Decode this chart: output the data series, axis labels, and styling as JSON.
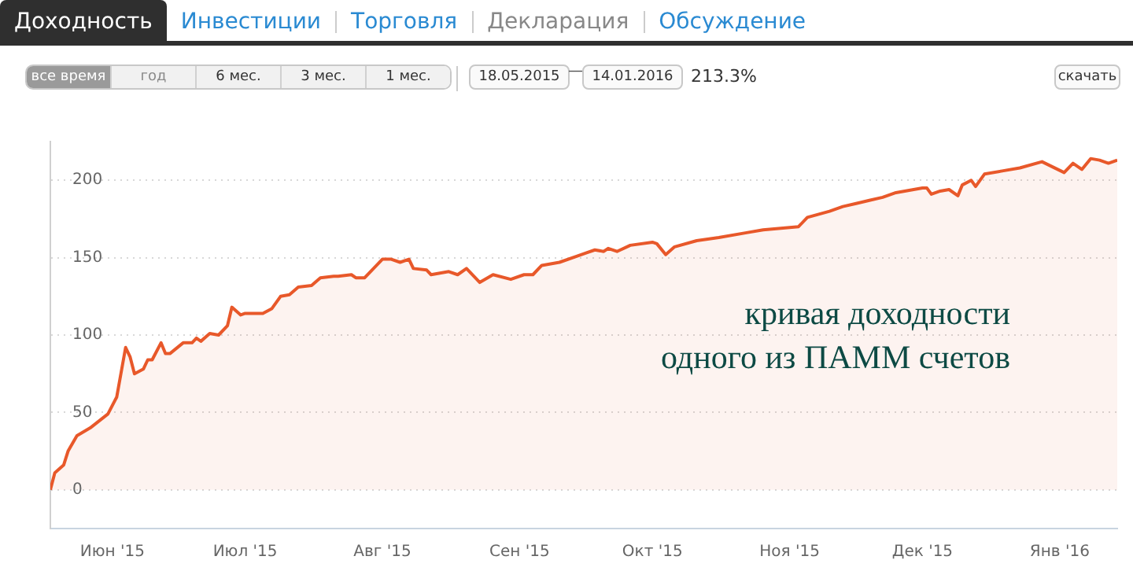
{
  "chart_data": {
    "type": "area",
    "x": [
      "2015-05-18",
      "2015-05-19",
      "2015-05-21",
      "2015-05-22",
      "2015-05-24",
      "2015-05-27",
      "2015-05-31",
      "2015-06-02",
      "2015-06-04",
      "2015-06-05",
      "2015-06-06",
      "2015-06-08",
      "2015-06-09",
      "2015-06-10",
      "2015-06-12",
      "2015-06-13",
      "2015-06-14",
      "2015-06-17",
      "2015-06-19",
      "2015-06-20",
      "2015-06-21",
      "2015-06-23",
      "2015-06-25",
      "2015-06-27",
      "2015-06-28",
      "2015-06-30",
      "2015-07-01",
      "2015-07-05",
      "2015-07-07",
      "2015-07-09",
      "2015-07-11",
      "2015-07-13",
      "2015-07-16",
      "2015-07-18",
      "2015-07-21",
      "2015-07-22",
      "2015-07-25",
      "2015-07-26",
      "2015-07-28",
      "2015-08-01",
      "2015-08-03",
      "2015-08-05",
      "2015-08-07",
      "2015-08-08",
      "2015-08-11",
      "2015-08-12",
      "2015-08-16",
      "2015-08-18",
      "2015-08-20",
      "2015-08-23",
      "2015-08-26",
      "2015-08-30",
      "2015-09-02",
      "2015-09-04",
      "2015-09-06",
      "2015-09-10",
      "2015-09-14",
      "2015-09-16",
      "2015-09-18",
      "2015-09-20",
      "2015-09-21",
      "2015-09-23",
      "2015-09-26",
      "2015-10-01",
      "2015-10-02",
      "2015-10-04",
      "2015-10-06",
      "2015-10-11",
      "2015-10-16",
      "2015-10-22",
      "2015-10-26",
      "2015-10-30",
      "2015-11-03",
      "2015-11-05",
      "2015-11-10",
      "2015-11-13",
      "2015-11-16",
      "2015-11-19",
      "2015-11-22",
      "2015-11-25",
      "2015-12-01",
      "2015-12-02",
      "2015-12-03",
      "2015-12-05",
      "2015-12-07",
      "2015-12-09",
      "2015-12-10",
      "2015-12-12",
      "2015-12-13",
      "2015-12-15",
      "2015-12-19",
      "2015-12-23",
      "2015-12-28",
      "2016-01-02",
      "2016-01-04",
      "2016-01-06",
      "2016-01-08",
      "2016-01-10",
      "2016-01-12",
      "2016-01-14"
    ],
    "series": [
      {
        "color": "#e8582a",
        "values": [
          0,
          11,
          16,
          25,
          35,
          40,
          49,
          60,
          92,
          86,
          75,
          78,
          84,
          84,
          95,
          88,
          88,
          95,
          95,
          98,
          96,
          101,
          100,
          106,
          118,
          113,
          114,
          114,
          117,
          125,
          126,
          131,
          132,
          137,
          138,
          138,
          139,
          137,
          137,
          149,
          149,
          147,
          149,
          143,
          142,
          139,
          141,
          139,
          143,
          134,
          139,
          136,
          139,
          139,
          145,
          147,
          151,
          153,
          155,
          154,
          156,
          154,
          158,
          160,
          159,
          152,
          157,
          161,
          163,
          166,
          168,
          169,
          170,
          176,
          180,
          183,
          185,
          187,
          189,
          192,
          195,
          195,
          191,
          193,
          194,
          190,
          197,
          200,
          196,
          204,
          206,
          208,
          212,
          205,
          211,
          207,
          214,
          213,
          211,
          213
        ]
      }
    ],
    "xlim": [
      "2015-05-18",
      "2016-01-14"
    ],
    "xticks": [
      {
        "value": "2015-06-01",
        "label": "Июн '15"
      },
      {
        "value": "2015-07-01",
        "label": "Июл '15"
      },
      {
        "value": "2015-08-01",
        "label": "Авг '15"
      },
      {
        "value": "2015-09-01",
        "label": "Сен '15"
      },
      {
        "value": "2015-10-01",
        "label": "Окт '15"
      },
      {
        "value": "2015-11-01",
        "label": "Ноя '15"
      },
      {
        "value": "2015-12-01",
        "label": "Дек '15"
      },
      {
        "value": "2016-01-01",
        "label": "Янв '16"
      }
    ],
    "ylim": [
      -25,
      225
    ],
    "yticks": [
      0,
      50,
      100,
      150,
      200
    ],
    "grid": "y",
    "legend": false,
    "marker": "none",
    "line_style": "solid",
    "annotations": [
      "Доходность",
      "Инвестиции",
      "Торговля",
      "Декларация",
      "Обсуждение",
      "все время",
      "год",
      "6 мес.",
      "3 мес.",
      "1 мес.",
      "18.05.2015",
      "—",
      "14.01.2016",
      "213.3%",
      "скачать",
      "кривая доходности",
      "одного из ПАММ счетов"
    ]
  }
}
